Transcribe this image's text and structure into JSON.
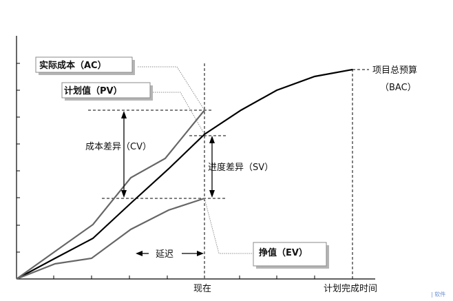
{
  "diagram": {
    "labels": {
      "ac": "实际成本（AC）",
      "pv": "计划值（PV）",
      "ev": "挣值（EV）",
      "cv": "成本差异（CV）",
      "sv": "进度差异（SV）",
      "delay": "延迟",
      "bac_line1": "项目总预算",
      "bac_line2": "（BAC）",
      "now": "现在",
      "planned_finish": "计划完成时间",
      "watermark": "| 软件"
    },
    "colors": {
      "pv_curve": "#000000",
      "ac_curve": "#666666",
      "ev_curve": "#666666",
      "leader_lines": "#8a8a8a"
    }
  }
}
